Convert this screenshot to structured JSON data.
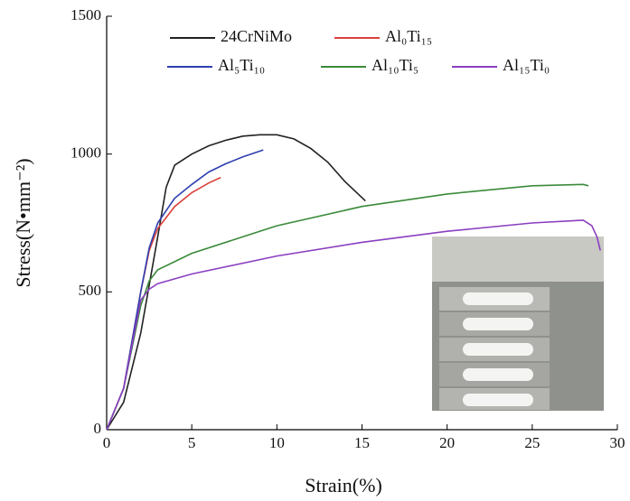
{
  "chart_data": {
    "type": "line",
    "xlabel": "Strain(%)",
    "ylabel": "Stress(N•mm⁻²)",
    "xlim": [
      0,
      30
    ],
    "xticks": [
      0,
      5,
      10,
      15,
      20,
      25,
      30
    ],
    "ylim": [
      0,
      1500
    ],
    "yticks": [
      0,
      500,
      1000,
      1500
    ],
    "series": [
      {
        "name": "24CrNiMo",
        "color": "#222222",
        "x": [
          0,
          1,
          2,
          3,
          3.5,
          4,
          5,
          6,
          7,
          8,
          9,
          10,
          11,
          12,
          13,
          14,
          15.2
        ],
        "values": [
          0,
          100,
          350,
          700,
          880,
          960,
          1000,
          1030,
          1050,
          1065,
          1070,
          1070,
          1055,
          1020,
          970,
          900,
          830
        ]
      },
      {
        "name": "Al₀Ti₁₅",
        "color": "#d9403a",
        "x": [
          0,
          1,
          2,
          2.5,
          3,
          4,
          5,
          6,
          6.7
        ],
        "values": [
          0,
          150,
          500,
          650,
          730,
          810,
          860,
          895,
          915
        ]
      },
      {
        "name": "Al₅Ti₁₀",
        "color": "#2e3fb0",
        "x": [
          0,
          1,
          2,
          2.5,
          3,
          4,
          5,
          6,
          7,
          8,
          9.2
        ],
        "values": [
          0,
          150,
          500,
          660,
          750,
          840,
          890,
          935,
          965,
          990,
          1015
        ]
      },
      {
        "name": "Al₁₀Ti₅",
        "color": "#3a8a3a",
        "x": [
          0,
          1,
          2,
          2.5,
          3,
          5,
          10,
          15,
          20,
          25,
          28,
          28.3
        ],
        "values": [
          0,
          150,
          450,
          540,
          580,
          640,
          740,
          810,
          855,
          885,
          890,
          885
        ]
      },
      {
        "name": "Al₁₅Ti₀",
        "color": "#8a3fc0",
        "x": [
          0,
          1,
          2,
          2.5,
          3,
          5,
          10,
          15,
          20,
          25,
          28,
          28.5,
          28.8,
          29
        ],
        "values": [
          0,
          150,
          470,
          510,
          530,
          565,
          630,
          680,
          720,
          750,
          760,
          740,
          700,
          650
        ]
      }
    ]
  }
}
